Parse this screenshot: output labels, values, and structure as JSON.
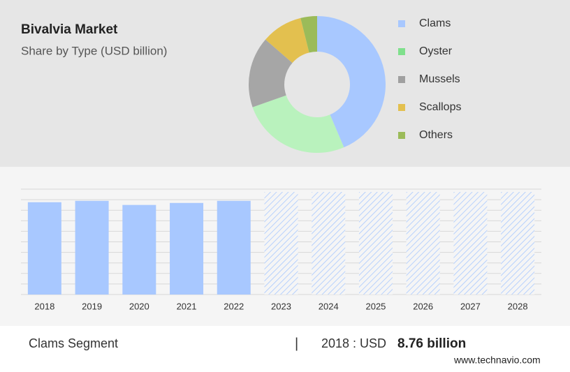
{
  "chart_data": [
    {
      "type": "donut",
      "title": "Bivalvia Market",
      "subtitle": "Share by Type (USD billion)",
      "categories": [
        "Clams",
        "Oyster",
        "Mussels",
        "Scallops",
        "Others"
      ],
      "values": [
        43.6,
        26,
        16.8,
        9.7,
        3.9
      ],
      "colors": [
        "#a8c8ff",
        "#b9f2bd",
        "#a6a6a6",
        "#e3c04f",
        "#9bbb59"
      ],
      "legend_colors": [
        "#a8c8ff",
        "#7fe08c",
        "#a0a0a0",
        "#e3c04f",
        "#9bbb59"
      ]
    },
    {
      "type": "bar",
      "categories": [
        "2018",
        "2019",
        "2020",
        "2021",
        "2022",
        "2023",
        "2024",
        "2025",
        "2026",
        "2027",
        "2028"
      ],
      "values": [
        8.76,
        8.89,
        8.5,
        8.69,
        8.89,
        null,
        null,
        null,
        null,
        null,
        null
      ],
      "color": "#a8c8ff",
      "ylim": [
        0,
        10
      ],
      "yticks": [
        0,
        1,
        2,
        3,
        4,
        5,
        6,
        7,
        8,
        9,
        10
      ],
      "grid": true
    }
  ],
  "footer": {
    "segment": "Clams Segment",
    "separator": "|",
    "year_label": "2018 : USD",
    "value": "8.76 billion",
    "site": "www.technavio.com"
  }
}
